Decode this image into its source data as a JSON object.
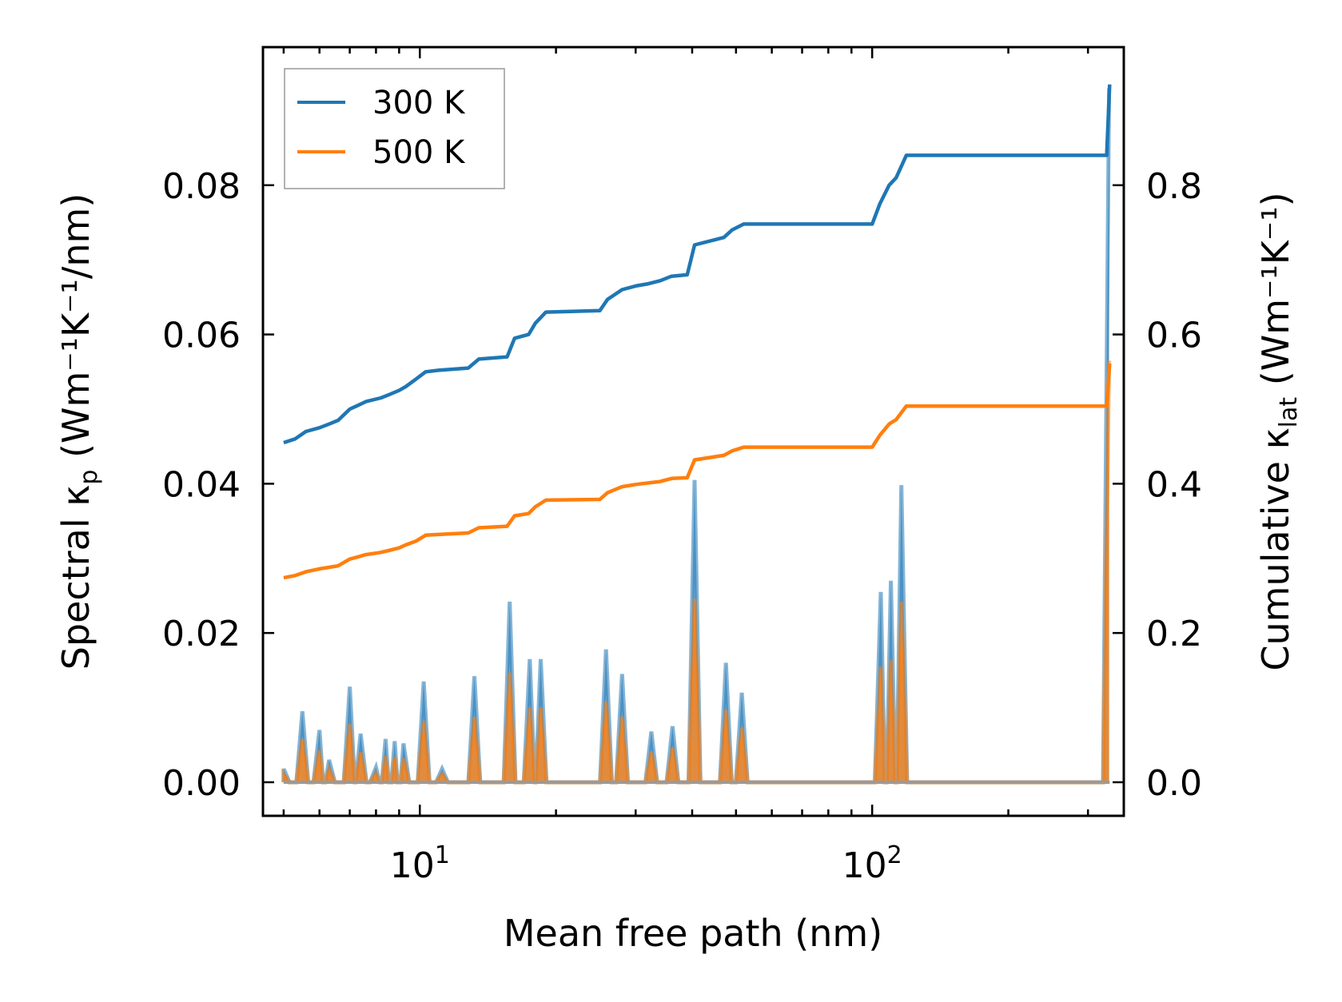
{
  "chart_data": {
    "type": "line",
    "title": "",
    "xlabel": "Mean free path (nm)",
    "xscale": "log",
    "xlim": [
      4.5,
      360
    ],
    "x_major_ticks": [
      10,
      100
    ],
    "x_tick_labels": [
      {
        "base": "10",
        "exp": "1"
      },
      {
        "base": "10",
        "exp": "2"
      }
    ],
    "left_axis": {
      "label": {
        "main": "Spectral κ",
        "sub": "p",
        "unit": " (Wm⁻¹K⁻¹/nm)"
      },
      "ylim": [
        -0.0045,
        0.0985
      ],
      "ticks": [
        0.0,
        0.02,
        0.04,
        0.06,
        0.08
      ],
      "tick_labels": [
        "0.00",
        "0.02",
        "0.04",
        "0.06",
        "0.08"
      ]
    },
    "right_axis": {
      "label": {
        "main": "Cumulative κ",
        "sub": "lat",
        "unit": " (Wm⁻¹K⁻¹)"
      },
      "ylim": [
        -0.045,
        0.985
      ],
      "ticks": [
        0.0,
        0.2,
        0.4,
        0.6,
        0.8
      ],
      "tick_labels": [
        "0.0",
        "0.2",
        "0.4",
        "0.6",
        "0.8"
      ]
    },
    "legend": {
      "position": "top-left",
      "entries": [
        "300 K",
        "500 K"
      ]
    },
    "colors": {
      "300K": "#1f77b4",
      "500K": "#ff7f0e"
    },
    "series": [
      {
        "name": "300 K",
        "axis": "right",
        "kind": "cumulative",
        "x": [
          5.0,
          5.3,
          5.6,
          6.0,
          6.3,
          6.6,
          7.0,
          7.3,
          7.6,
          8.2,
          8.6,
          9.0,
          9.3,
          9.8,
          10.3,
          11.0,
          12.8,
          13.5,
          15.6,
          16.2,
          17.4,
          18.0,
          19.0,
          25.0,
          26.0,
          28.0,
          30.0,
          32.0,
          34.0,
          36.0,
          39.0,
          40.5,
          47.0,
          49.0,
          52.0,
          100.0,
          104.0,
          109.0,
          113.0,
          119.0,
          330.0,
          335.0
        ],
        "y": [
          0.455,
          0.46,
          0.47,
          0.475,
          0.48,
          0.485,
          0.5,
          0.505,
          0.51,
          0.515,
          0.52,
          0.525,
          0.53,
          0.54,
          0.55,
          0.552,
          0.555,
          0.567,
          0.57,
          0.595,
          0.6,
          0.615,
          0.63,
          0.632,
          0.647,
          0.66,
          0.665,
          0.668,
          0.672,
          0.678,
          0.68,
          0.72,
          0.73,
          0.74,
          0.748,
          0.748,
          0.775,
          0.8,
          0.81,
          0.84,
          0.84,
          0.935
        ]
      },
      {
        "name": "500 K",
        "axis": "right",
        "kind": "cumulative",
        "x": [
          5.0,
          5.3,
          5.6,
          6.0,
          6.3,
          6.6,
          7.0,
          7.3,
          7.6,
          8.2,
          8.6,
          9.0,
          9.3,
          9.8,
          10.3,
          11.0,
          12.8,
          13.5,
          15.6,
          16.2,
          17.4,
          18.0,
          19.0,
          25.0,
          26.0,
          28.0,
          30.0,
          32.0,
          34.0,
          36.0,
          39.0,
          40.5,
          47.0,
          49.0,
          52.0,
          100.0,
          104.0,
          109.0,
          113.0,
          119.0,
          330.0,
          335.0
        ],
        "y": [
          0.274,
          0.277,
          0.282,
          0.286,
          0.288,
          0.29,
          0.299,
          0.302,
          0.305,
          0.308,
          0.311,
          0.314,
          0.318,
          0.323,
          0.331,
          0.332,
          0.334,
          0.341,
          0.343,
          0.357,
          0.36,
          0.369,
          0.378,
          0.379,
          0.388,
          0.396,
          0.399,
          0.401,
          0.403,
          0.407,
          0.408,
          0.432,
          0.438,
          0.444,
          0.449,
          0.449,
          0.465,
          0.48,
          0.486,
          0.504,
          0.504,
          0.561
        ]
      },
      {
        "name": "300 K spectral",
        "axis": "left",
        "kind": "spectral",
        "peaks": [
          [
            5.0,
            0.0018
          ],
          [
            5.5,
            0.0095
          ],
          [
            6.0,
            0.007
          ],
          [
            6.3,
            0.003
          ],
          [
            7.0,
            0.0128
          ],
          [
            7.4,
            0.0065
          ],
          [
            8.0,
            0.002
          ],
          [
            8.4,
            0.0058
          ],
          [
            8.8,
            0.0055
          ],
          [
            9.2,
            0.0052
          ],
          [
            10.2,
            0.0135
          ],
          [
            11.2,
            0.0018
          ],
          [
            13.2,
            0.0142
          ],
          [
            15.8,
            0.0242
          ],
          [
            17.5,
            0.0165
          ],
          [
            18.5,
            0.0165
          ],
          [
            25.8,
            0.0178
          ],
          [
            28.0,
            0.0145
          ],
          [
            32.5,
            0.0068
          ],
          [
            36.2,
            0.0075
          ],
          [
            40.5,
            0.0405
          ],
          [
            47.5,
            0.016
          ],
          [
            51.5,
            0.012
          ],
          [
            104.5,
            0.0255
          ],
          [
            110.0,
            0.027
          ],
          [
            116.0,
            0.0398
          ],
          [
            334.0,
            0.093
          ]
        ]
      },
      {
        "name": "500 K spectral",
        "axis": "left",
        "kind": "spectral",
        "peaks": [
          [
            5.0,
            0.0011
          ],
          [
            5.5,
            0.0058
          ],
          [
            6.0,
            0.0043
          ],
          [
            6.3,
            0.0018
          ],
          [
            7.0,
            0.0078
          ],
          [
            7.4,
            0.004
          ],
          [
            8.0,
            0.0012
          ],
          [
            8.4,
            0.0035
          ],
          [
            8.8,
            0.0034
          ],
          [
            9.2,
            0.0032
          ],
          [
            10.2,
            0.0082
          ],
          [
            11.2,
            0.0011
          ],
          [
            13.2,
            0.0087
          ],
          [
            15.8,
            0.0147
          ],
          [
            17.5,
            0.01
          ],
          [
            18.5,
            0.01
          ],
          [
            25.8,
            0.0108
          ],
          [
            28.0,
            0.0088
          ],
          [
            32.5,
            0.0041
          ],
          [
            36.2,
            0.0046
          ],
          [
            40.5,
            0.0246
          ],
          [
            47.5,
            0.0097
          ],
          [
            51.5,
            0.0073
          ],
          [
            104.5,
            0.0155
          ],
          [
            110.0,
            0.0164
          ],
          [
            116.0,
            0.0242
          ],
          [
            334.0,
            0.0565
          ]
        ]
      }
    ]
  }
}
